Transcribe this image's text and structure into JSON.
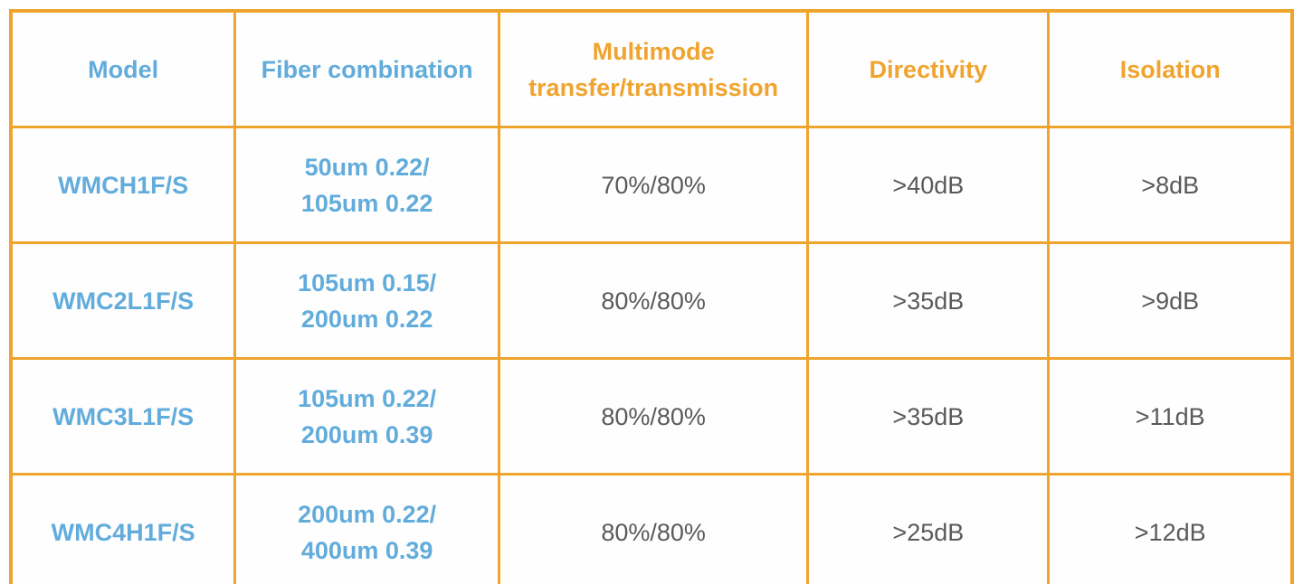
{
  "chart_data": {
    "type": "table",
    "columns": [
      "Model",
      "Fiber combination",
      "Multimode transfer/transmission",
      "Directivity",
      "Isolation"
    ],
    "rows": [
      [
        "WMCH1F/S",
        "50um 0.22/ 105um 0.22",
        "70%/80%",
        ">40dB",
        ">8dB"
      ],
      [
        "WMC2L1F/S",
        "105um 0.15/ 200um 0.22",
        "80%/80%",
        ">35dB",
        ">9dB"
      ],
      [
        "WMC3L1F/S",
        "105um 0.22/ 200um 0.39",
        "80%/80%",
        ">35dB",
        ">11dB"
      ],
      [
        "WMC4H1F/S",
        "200um 0.22/ 400um 0.39",
        "80%/80%",
        ">25dB",
        ">12dB"
      ]
    ],
    "title": "",
    "legend_position": "none",
    "grid": "full-borders"
  },
  "colors": {
    "border_orange": "#EFA42D",
    "header_orange": "#F0A42F",
    "header_blue": "#62ACDC",
    "value_gray": "#595A5C",
    "background": "#FFFFFF"
  },
  "header": {
    "model": "Model",
    "fiber": "Fiber combination",
    "multimode_line1": "Multimode",
    "multimode_line2": "transfer/transmission",
    "directivity": "Directivity",
    "isolation": "Isolation"
  },
  "rows": [
    {
      "model": "WMCH1F/S",
      "fiber_line1": "50um 0.22/",
      "fiber_line2": "105um 0.22",
      "multimode": "70%/80%",
      "directivity": ">40dB",
      "isolation": ">8dB"
    },
    {
      "model": "WMC2L1F/S",
      "fiber_line1": "105um 0.15/",
      "fiber_line2": "200um 0.22",
      "multimode": "80%/80%",
      "directivity": ">35dB",
      "isolation": ">9dB"
    },
    {
      "model": "WMC3L1F/S",
      "fiber_line1": "105um 0.22/",
      "fiber_line2": "200um 0.39",
      "multimode": "80%/80%",
      "directivity": ">35dB",
      "isolation": ">11dB"
    },
    {
      "model": "WMC4H1F/S",
      "fiber_line1": "200um 0.22/",
      "fiber_line2": "400um 0.39",
      "multimode": "80%/80%",
      "directivity": ">25dB",
      "isolation": ">12dB"
    }
  ]
}
